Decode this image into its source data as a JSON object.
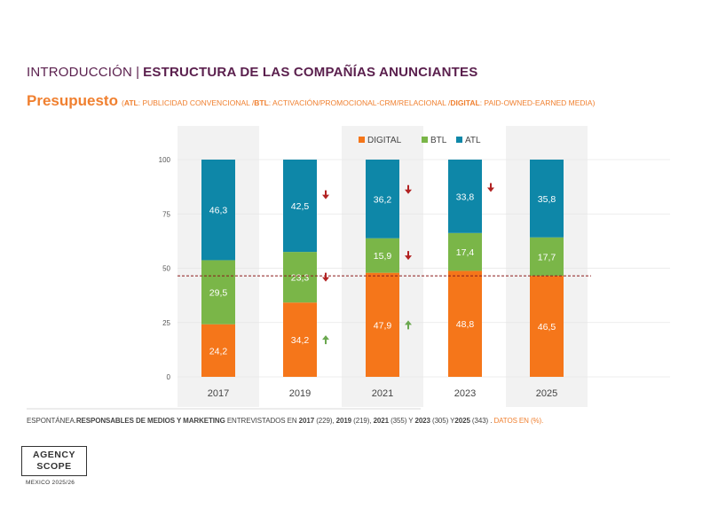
{
  "header": {
    "intro": "INTRODUCCIÓN",
    "separator": "|",
    "title": "ESTRUCTURA DE LAS COMPAÑÍAS ANUNCIANTES"
  },
  "subtitle": {
    "main": "Presupuesto",
    "open": "(",
    "atl_key": "ATL",
    "atl_desc": ": PUBLICIDAD CONVENCIONAL /",
    "btl_key": "BTL",
    "btl_desc": ": ACTIVACIÓN/PROMOCIONAL-CRM/RELACIONAL /",
    "digital_key": "DIGITAL",
    "digital_desc": ": PAID-OWNED-EARNED MEDIA)"
  },
  "footer": {
    "p1": "ESPONTÁNEA.",
    "p2": "RESPONSABLES DE MEDIOS Y MARKETING",
    "p3": " ENTREVISTADOS EN ",
    "y2017": "2017",
    "n2017": " (229), ",
    "y2019": "2019",
    "n2019": " (219), ",
    "y2021": "2021",
    "n2021": " (355) Y ",
    "y2023": "2023",
    "n2023": " (305) Y",
    "y2025": "2025",
    "n2025": " (343) . ",
    "unit": "DATOS EN (%)."
  },
  "logo": {
    "line1": "AGENCY",
    "line2": "SCOPE",
    "sub": "MEXICO 2025/26"
  },
  "colors": {
    "digital": "#f5761a",
    "btl": "#7ab648",
    "atl": "#0e87a8",
    "band": "#f2f2f2",
    "up_arrow": "#6aa84f",
    "down_arrow": "#b22222",
    "reference_line": "#8b1a1a"
  },
  "chart_data": {
    "type": "bar",
    "stacked": true,
    "categories": [
      "2017",
      "2019",
      "2021",
      "2023",
      "2025"
    ],
    "series": [
      {
        "name": "DIGITAL",
        "values": [
          24.2,
          34.2,
          47.9,
          48.8,
          46.5
        ],
        "labels": [
          "24,2",
          "34,2",
          "47,9",
          "48,8",
          "46,5"
        ]
      },
      {
        "name": "BTL",
        "values": [
          29.5,
          23.3,
          15.9,
          17.4,
          17.7
        ],
        "labels": [
          "29,5",
          "23,3",
          "15,9",
          "17,4",
          "17,7"
        ]
      },
      {
        "name": "ATL",
        "values": [
          46.3,
          42.5,
          36.2,
          33.8,
          35.8
        ],
        "labels": [
          "46,3",
          "42,5",
          "36,2",
          "33,8",
          "35,8"
        ]
      }
    ],
    "yticks": [
      0,
      25,
      50,
      75,
      100
    ],
    "ylim": [
      0,
      100
    ],
    "reference_line": 46.5,
    "legend_position": "top",
    "grid": true,
    "trend_arrows": [
      {
        "category": "2019",
        "series": "ATL",
        "direction": "down"
      },
      {
        "category": "2019",
        "series": "BTL",
        "direction": "down"
      },
      {
        "category": "2019",
        "series": "DIGITAL",
        "direction": "up"
      },
      {
        "category": "2021",
        "series": "ATL",
        "direction": "down"
      },
      {
        "category": "2021",
        "series": "BTL",
        "direction": "down"
      },
      {
        "category": "2021",
        "series": "DIGITAL",
        "direction": "up"
      },
      {
        "category": "2023",
        "series": "ATL",
        "direction": "down"
      }
    ]
  }
}
